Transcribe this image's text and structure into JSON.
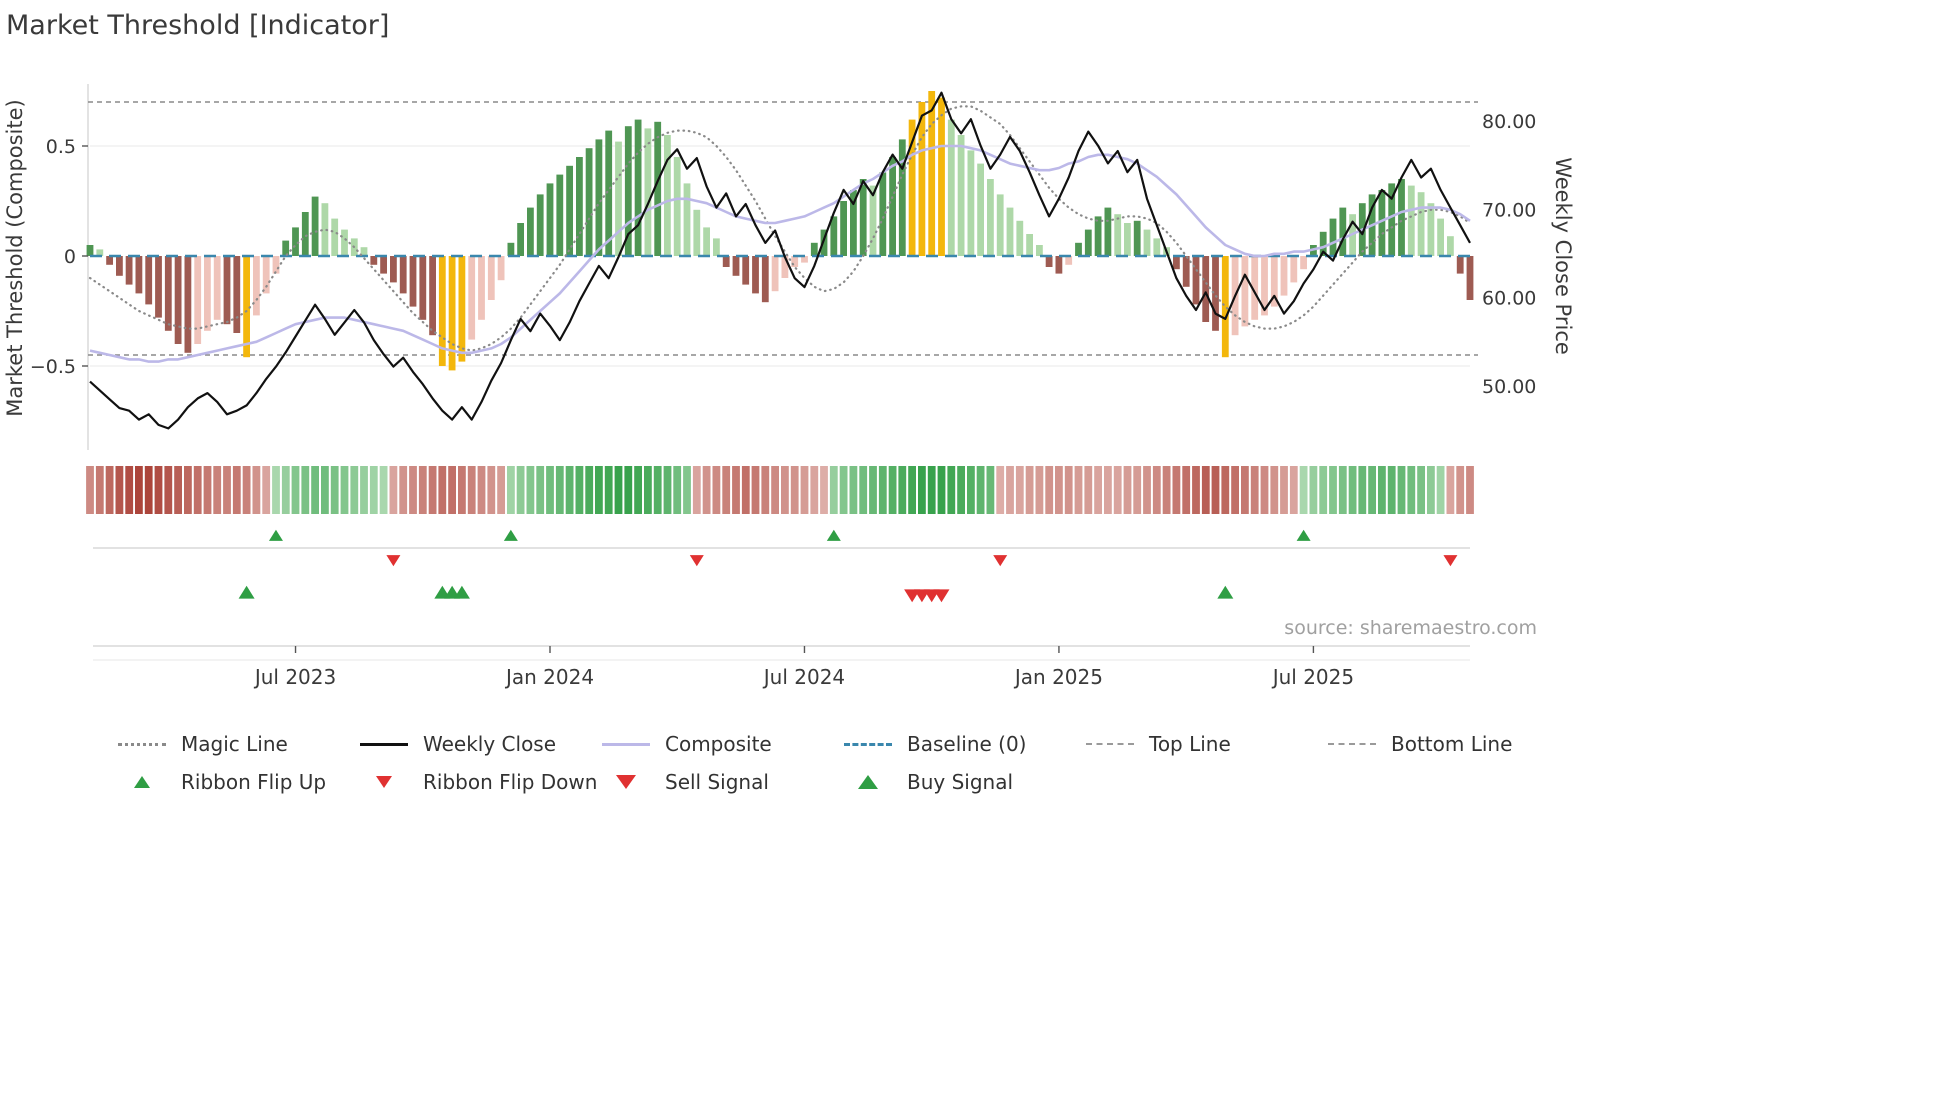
{
  "page": {
    "title": "Market Threshold [Indicator]",
    "source": "source: sharemaestro.com"
  },
  "axes": {
    "left_label": "Market Threshold (Composite)",
    "right_label": "Weekly Close Price",
    "left_ticks": [
      {
        "value": 0.5,
        "label": "0.5"
      },
      {
        "value": 0,
        "label": "0"
      },
      {
        "value": -0.5,
        "label": "−0.5"
      }
    ],
    "right_ticks": [
      {
        "value": 80,
        "label": "80.00"
      },
      {
        "value": 70,
        "label": "70.00"
      },
      {
        "value": 60,
        "label": "60.00"
      },
      {
        "value": 50,
        "label": "50.00"
      }
    ],
    "x_ticks": [
      "Jul 2023",
      "Jan 2024",
      "Jul 2024",
      "Jan 2025",
      "Jul 2025"
    ]
  },
  "colors": {
    "bar_pos_dark": "#4f9653",
    "bar_pos_light": "#aed8a8",
    "bar_neg_dark": "#9e5b52",
    "bar_neg_light": "#efc3ba",
    "signal_bar": "#f3b70c",
    "weekly_close": "#111111",
    "composite_line": "#bcb8e8",
    "magic_line": "#8a8a8a",
    "baseline": "#3a87ad",
    "bound_lines": "#8a8a8a",
    "flip_up": "#2f9e44",
    "flip_down": "#e03131",
    "ribbon_green_dark": "#2f9e44",
    "ribbon_green_light": "#eaf6e6",
    "ribbon_red_dark": "#a83c32",
    "ribbon_red_light": "#faeae6"
  },
  "chart_data": {
    "type": "mixed",
    "components": [
      "bar-histogram",
      "line",
      "ribbon-heatmap",
      "signal-markers"
    ],
    "x_unit": "weekly",
    "x_tick_indices": [
      21,
      47,
      73,
      99,
      125
    ],
    "left_axis_range": [
      -0.75,
      0.8
    ],
    "right_axis_range": [
      45,
      84
    ],
    "top_line": 0.7,
    "bottom_line": -0.45,
    "baseline": 0,
    "bars": [
      0.05,
      0.03,
      -0.04,
      -0.09,
      -0.13,
      -0.17,
      -0.22,
      -0.28,
      -0.34,
      -0.4,
      -0.44,
      -0.4,
      -0.34,
      -0.29,
      -0.31,
      -0.35,
      -0.46,
      -0.27,
      -0.17,
      -0.08,
      0.07,
      0.13,
      0.2,
      0.27,
      0.24,
      0.17,
      0.12,
      0.08,
      0.04,
      -0.04,
      -0.08,
      -0.12,
      -0.17,
      -0.23,
      -0.29,
      -0.36,
      -0.5,
      -0.52,
      -0.48,
      -0.38,
      -0.29,
      -0.2,
      -0.11,
      0.06,
      0.15,
      0.22,
      0.28,
      0.33,
      0.37,
      0.41,
      0.45,
      0.49,
      0.53,
      0.57,
      0.52,
      0.59,
      0.62,
      0.58,
      0.61,
      0.55,
      0.45,
      0.33,
      0.21,
      0.13,
      0.08,
      -0.05,
      -0.09,
      -0.13,
      -0.17,
      -0.21,
      -0.16,
      -0.1,
      -0.05,
      -0.03,
      0.06,
      0.12,
      0.18,
      0.25,
      0.3,
      0.35,
      0.32,
      0.38,
      0.45,
      0.53,
      0.62,
      0.7,
      0.75,
      0.72,
      0.62,
      0.55,
      0.48,
      0.42,
      0.35,
      0.28,
      0.22,
      0.16,
      0.1,
      0.05,
      -0.05,
      -0.08,
      -0.04,
      0.06,
      0.12,
      0.18,
      0.22,
      0.19,
      0.15,
      0.16,
      0.12,
      0.08,
      0.04,
      -0.06,
      -0.14,
      -0.22,
      -0.3,
      -0.34,
      -0.46,
      -0.36,
      -0.32,
      -0.29,
      -0.27,
      -0.23,
      -0.18,
      -0.12,
      -0.06,
      0.05,
      0.11,
      0.17,
      0.22,
      0.19,
      0.24,
      0.28,
      0.3,
      0.33,
      0.35,
      0.32,
      0.29,
      0.24,
      0.17,
      0.09,
      -0.08,
      -0.2
    ],
    "weekly_close": [
      50.5,
      49.5,
      48.5,
      47.5,
      47.2,
      46.2,
      46.8,
      45.6,
      45.2,
      46.2,
      47.6,
      48.6,
      49.2,
      48.2,
      46.8,
      47.2,
      47.8,
      49.2,
      50.8,
      52.2,
      53.8,
      55.6,
      57.4,
      59.2,
      57.6,
      55.8,
      57.2,
      58.6,
      57.2,
      55.2,
      53.6,
      52.2,
      53.2,
      51.6,
      50.2,
      48.6,
      47.2,
      46.2,
      47.6,
      46.2,
      48.2,
      50.6,
      52.6,
      55.2,
      57.6,
      56.2,
      58.2,
      56.8,
      55.2,
      57.2,
      59.6,
      61.6,
      63.6,
      62.2,
      64.6,
      67.2,
      68.2,
      70.6,
      73.2,
      75.6,
      76.8,
      74.6,
      75.8,
      72.6,
      70.2,
      71.8,
      69.2,
      70.6,
      68.2,
      66.2,
      67.6,
      64.6,
      62.2,
      61.2,
      63.6,
      66.6,
      69.6,
      72.2,
      70.6,
      73.2,
      71.6,
      74.2,
      76.2,
      74.6,
      77.6,
      80.6,
      81.2,
      83.2,
      80.2,
      78.6,
      80.2,
      77.2,
      74.6,
      76.2,
      78.2,
      76.6,
      74.2,
      71.6,
      69.2,
      71.2,
      73.6,
      76.6,
      78.8,
      77.2,
      75.2,
      76.6,
      74.2,
      75.6,
      71.2,
      68.2,
      65.2,
      62.2,
      60.2,
      58.6,
      60.6,
      58.2,
      57.6,
      60.2,
      62.6,
      60.6,
      58.6,
      60.2,
      58.2,
      59.6,
      61.6,
      63.2,
      65.2,
      64.2,
      66.6,
      68.6,
      67.2,
      70.2,
      72.2,
      71.2,
      73.6,
      75.6,
      73.6,
      74.6,
      72.2,
      70.2,
      68.2,
      66.2
    ],
    "composite_line": [
      -0.43,
      -0.44,
      -0.45,
      -0.46,
      -0.47,
      -0.47,
      -0.48,
      -0.48,
      -0.47,
      -0.47,
      -0.46,
      -0.45,
      -0.44,
      -0.43,
      -0.42,
      -0.41,
      -0.4,
      -0.39,
      -0.37,
      -0.35,
      -0.33,
      -0.31,
      -0.3,
      -0.29,
      -0.28,
      -0.28,
      -0.28,
      -0.29,
      -0.3,
      -0.31,
      -0.32,
      -0.33,
      -0.34,
      -0.36,
      -0.38,
      -0.4,
      -0.42,
      -0.43,
      -0.44,
      -0.44,
      -0.43,
      -0.42,
      -0.4,
      -0.37,
      -0.33,
      -0.29,
      -0.25,
      -0.21,
      -0.17,
      -0.12,
      -0.07,
      -0.02,
      0.03,
      0.07,
      0.11,
      0.15,
      0.18,
      0.21,
      0.23,
      0.25,
      0.26,
      0.26,
      0.25,
      0.24,
      0.22,
      0.2,
      0.18,
      0.17,
      0.16,
      0.15,
      0.15,
      0.16,
      0.17,
      0.18,
      0.2,
      0.22,
      0.24,
      0.27,
      0.3,
      0.33,
      0.35,
      0.38,
      0.41,
      0.43,
      0.46,
      0.48,
      0.49,
      0.5,
      0.5,
      0.5,
      0.49,
      0.48,
      0.46,
      0.44,
      0.42,
      0.41,
      0.4,
      0.39,
      0.39,
      0.4,
      0.42,
      0.43,
      0.45,
      0.46,
      0.46,
      0.45,
      0.44,
      0.42,
      0.39,
      0.36,
      0.32,
      0.28,
      0.23,
      0.18,
      0.13,
      0.09,
      0.05,
      0.03,
      0.01,
      0.0,
      0.0,
      0.01,
      0.01,
      0.02,
      0.02,
      0.03,
      0.04,
      0.06,
      0.08,
      0.1,
      0.12,
      0.14,
      0.16,
      0.18,
      0.2,
      0.21,
      0.22,
      0.22,
      0.22,
      0.21,
      0.19,
      0.16
    ],
    "magic_line": [
      -0.1,
      -0.13,
      -0.16,
      -0.19,
      -0.22,
      -0.25,
      -0.27,
      -0.29,
      -0.31,
      -0.32,
      -0.33,
      -0.33,
      -0.32,
      -0.31,
      -0.3,
      -0.28,
      -0.25,
      -0.2,
      -0.14,
      -0.07,
      0.0,
      0.05,
      0.09,
      0.11,
      0.12,
      0.11,
      0.08,
      0.04,
      -0.01,
      -0.06,
      -0.11,
      -0.16,
      -0.21,
      -0.26,
      -0.3,
      -0.34,
      -0.37,
      -0.4,
      -0.42,
      -0.43,
      -0.42,
      -0.4,
      -0.37,
      -0.33,
      -0.28,
      -0.22,
      -0.16,
      -0.1,
      -0.04,
      0.03,
      0.1,
      0.17,
      0.24,
      0.3,
      0.36,
      0.42,
      0.47,
      0.51,
      0.54,
      0.56,
      0.57,
      0.57,
      0.56,
      0.54,
      0.5,
      0.45,
      0.39,
      0.32,
      0.25,
      0.17,
      0.09,
      0.02,
      -0.05,
      -0.1,
      -0.14,
      -0.16,
      -0.15,
      -0.12,
      -0.07,
      0.0,
      0.08,
      0.17,
      0.27,
      0.37,
      0.46,
      0.54,
      0.6,
      0.64,
      0.67,
      0.68,
      0.68,
      0.66,
      0.63,
      0.6,
      0.55,
      0.49,
      0.43,
      0.37,
      0.31,
      0.26,
      0.22,
      0.19,
      0.17,
      0.16,
      0.16,
      0.17,
      0.18,
      0.18,
      0.17,
      0.15,
      0.11,
      0.06,
      0.0,
      -0.06,
      -0.12,
      -0.18,
      -0.23,
      -0.27,
      -0.3,
      -0.32,
      -0.33,
      -0.33,
      -0.32,
      -0.3,
      -0.27,
      -0.23,
      -0.18,
      -0.13,
      -0.08,
      -0.03,
      0.02,
      0.06,
      0.1,
      0.13,
      0.16,
      0.18,
      0.2,
      0.21,
      0.21,
      0.2,
      0.18,
      0.15
    ],
    "ribbon": [
      -0.55,
      -0.65,
      -0.75,
      -0.85,
      -0.9,
      -0.95,
      -0.95,
      -0.9,
      -0.85,
      -0.8,
      -0.75,
      -0.7,
      -0.65,
      -0.6,
      -0.6,
      -0.65,
      -0.6,
      -0.5,
      -0.4,
      0.35,
      0.45,
      0.55,
      0.6,
      0.65,
      0.65,
      0.6,
      0.55,
      0.5,
      0.45,
      0.4,
      0.35,
      -0.4,
      -0.5,
      -0.55,
      -0.6,
      -0.65,
      -0.7,
      -0.7,
      -0.65,
      -0.6,
      -0.55,
      -0.5,
      -0.45,
      0.4,
      0.5,
      0.55,
      0.6,
      0.65,
      0.7,
      0.75,
      0.8,
      0.85,
      0.9,
      0.9,
      0.95,
      0.95,
      0.9,
      0.85,
      0.8,
      0.75,
      0.65,
      0.55,
      -0.4,
      -0.5,
      -0.55,
      -0.6,
      -0.65,
      -0.7,
      -0.65,
      -0.6,
      -0.55,
      -0.5,
      -0.5,
      -0.45,
      -0.4,
      -0.35,
      0.45,
      0.55,
      0.6,
      0.65,
      0.7,
      0.75,
      0.8,
      0.85,
      0.9,
      0.95,
      0.95,
      0.95,
      0.9,
      0.85,
      0.8,
      0.75,
      0.7,
      -0.35,
      -0.4,
      -0.4,
      -0.45,
      -0.45,
      -0.5,
      -0.5,
      -0.5,
      -0.45,
      -0.45,
      -0.4,
      -0.4,
      -0.4,
      -0.45,
      -0.45,
      -0.5,
      -0.55,
      -0.6,
      -0.65,
      -0.7,
      -0.75,
      -0.8,
      -0.8,
      -0.75,
      -0.7,
      -0.65,
      -0.6,
      -0.55,
      -0.5,
      -0.45,
      -0.4,
      0.35,
      0.45,
      0.5,
      0.55,
      0.6,
      0.65,
      0.7,
      0.7,
      0.75,
      0.75,
      0.7,
      0.65,
      0.6,
      0.5,
      0.4,
      -0.4,
      -0.5,
      -0.55
    ],
    "signals": {
      "flip_up": [
        19,
        43,
        76,
        124
      ],
      "flip_down": [
        31,
        62,
        93,
        139
      ],
      "buy": [
        16,
        36,
        37,
        38,
        116
      ],
      "sell": [
        84,
        85,
        86,
        87
      ],
      "yellow_bars": [
        16,
        36,
        37,
        38,
        84,
        85,
        86,
        87,
        116
      ]
    }
  },
  "legend": [
    {
      "id": "magic-line",
      "label": "Magic Line",
      "type": "dotted-gray",
      "icon": "dotted-line-swatch"
    },
    {
      "id": "weekly-close",
      "label": "Weekly Close",
      "type": "solid-black",
      "icon": "solid-line-swatch"
    },
    {
      "id": "composite",
      "label": "Composite",
      "type": "solid-lavender",
      "icon": "solid-line-swatch"
    },
    {
      "id": "baseline",
      "label": "Baseline (0)",
      "type": "dashed-blue",
      "icon": "dashed-line-swatch"
    },
    {
      "id": "top-line",
      "label": "Top Line",
      "type": "dashed-gray",
      "icon": "dashed-line-swatch"
    },
    {
      "id": "bottom-line",
      "label": "Bottom Line",
      "type": "dashed-gray",
      "icon": "dashed-line-swatch"
    },
    {
      "id": "ribbon-flip-up",
      "label": "Ribbon Flip Up",
      "type": "tri-up-green",
      "icon": "triangle-up-icon"
    },
    {
      "id": "ribbon-flip-down",
      "label": "Ribbon Flip Down",
      "type": "tri-down-red",
      "icon": "triangle-down-icon"
    },
    {
      "id": "sell-signal",
      "label": "Sell Signal",
      "type": "tri-down-red-lg",
      "icon": "triangle-down-icon"
    },
    {
      "id": "buy-signal",
      "label": "Buy Signal",
      "type": "tri-up-green-lg",
      "icon": "triangle-up-icon"
    }
  ]
}
